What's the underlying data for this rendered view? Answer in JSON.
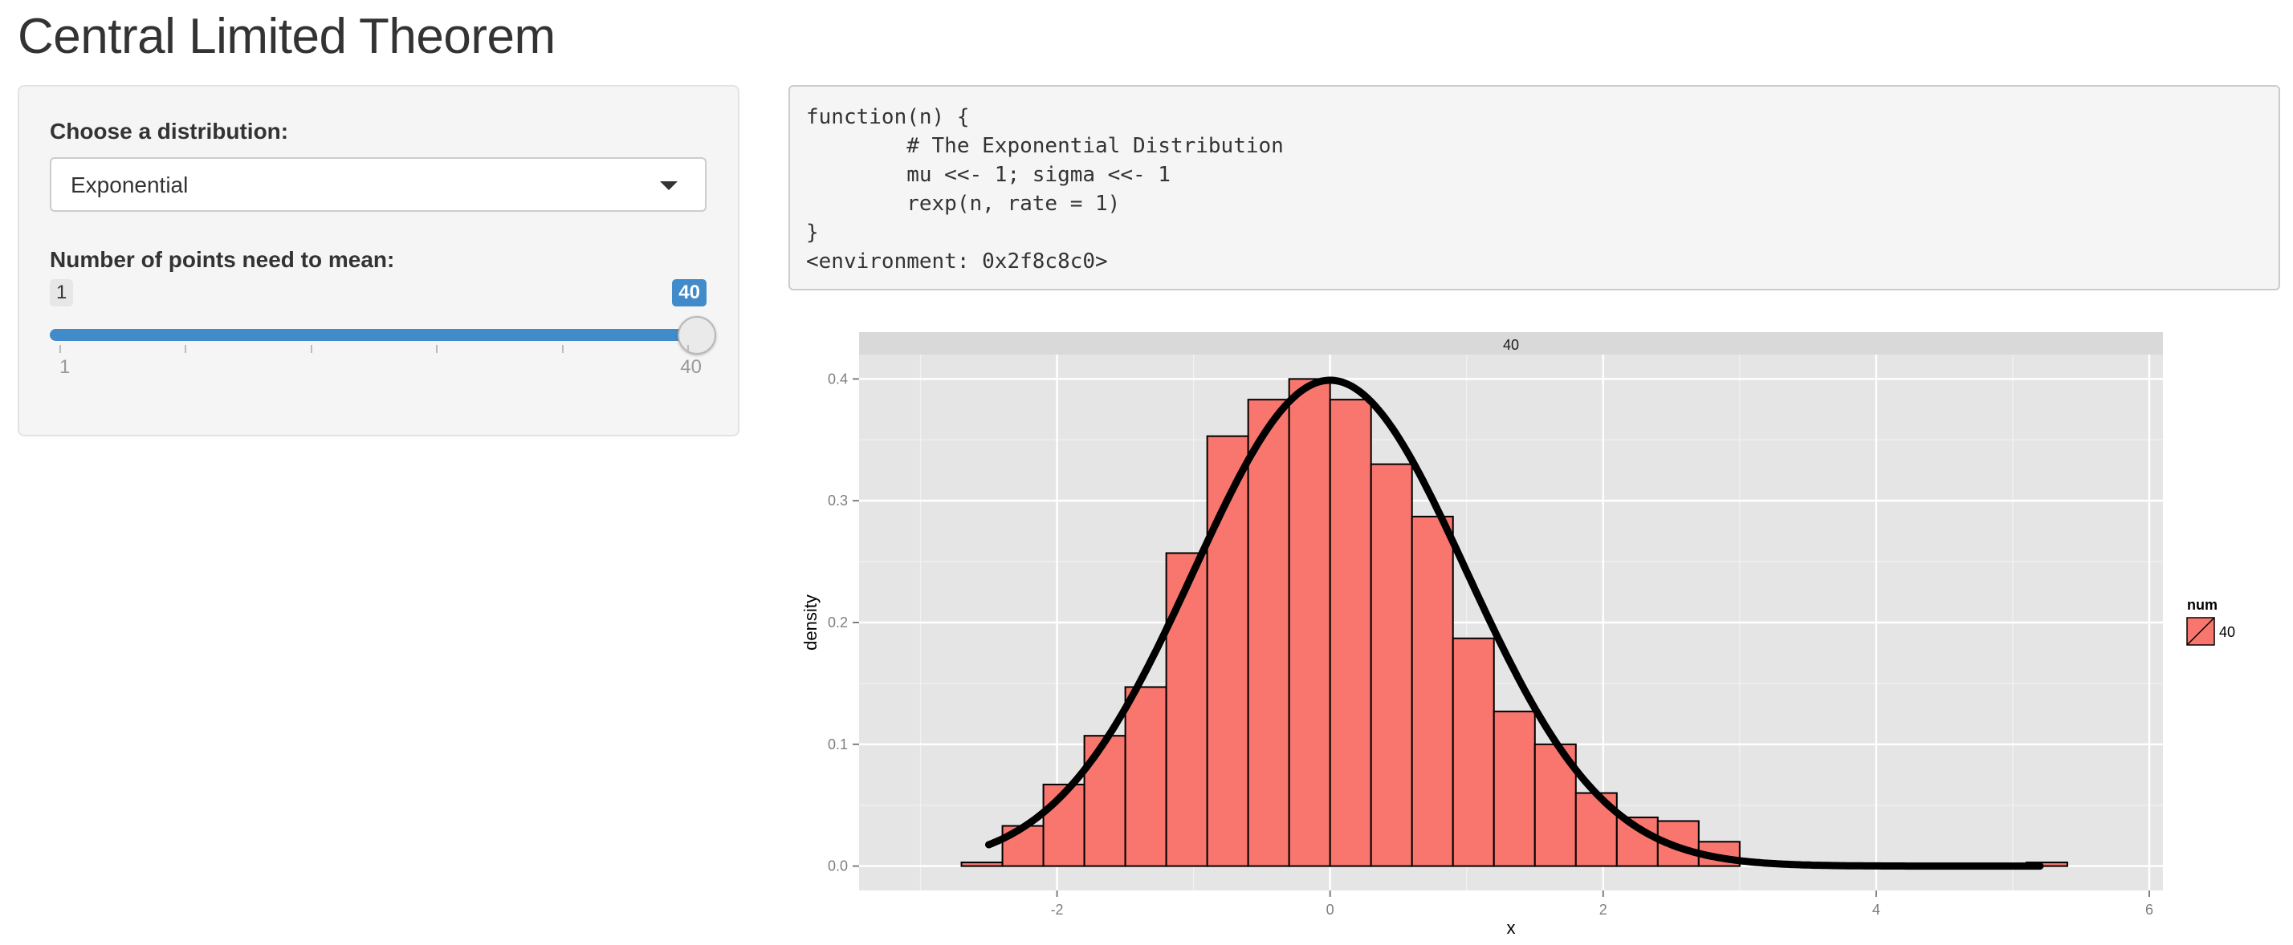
{
  "app": {
    "title": "Central Limited Theorem"
  },
  "sidebar": {
    "distribution_label": "Choose a distribution:",
    "distribution_value": "Exponential",
    "points_label": "Number of points need to mean:",
    "slider": {
      "min": 1,
      "max": 40,
      "value": 40,
      "min_label": "1",
      "max_label": "40",
      "value_label": "40",
      "tick_count": 6
    }
  },
  "code_output": {
    "lines": [
      "function(n) {",
      "        # The Exponential Distribution",
      "        mu <<- 1; sigma <<- 1",
      "        rexp(n, rate = 1)",
      "}",
      "<environment: 0x2f8c8c0>"
    ]
  },
  "colors": {
    "bar_fill": "#f8766d",
    "panel_bg": "#e5e5e5",
    "strip_bg": "#d9d9d9",
    "slider_blue": "#428bca",
    "curve": "#000000"
  },
  "chart_data": {
    "type": "bar",
    "facet_label": "40",
    "xlabel": "x",
    "ylabel": "density",
    "xlim": [
      -3.45,
      6.1
    ],
    "ylim": [
      -0.02,
      0.42
    ],
    "x_ticks": [
      -2,
      0,
      2,
      4,
      6
    ],
    "x_tick_labels": [
      "-2",
      "0",
      "2",
      "4",
      "6"
    ],
    "y_ticks": [
      0.0,
      0.1,
      0.2,
      0.3,
      0.4
    ],
    "y_tick_labels": [
      "0.0",
      "0.1",
      "0.2",
      "0.3",
      "0.4"
    ],
    "bin_width": 0.3,
    "bins": [
      {
        "x0": -3.0,
        "x1": -2.7,
        "value": 0.0
      },
      {
        "x0": -2.7,
        "x1": -2.4,
        "value": 0.003
      },
      {
        "x0": -2.4,
        "x1": -2.1,
        "value": 0.033
      },
      {
        "x0": -2.1,
        "x1": -1.8,
        "value": 0.067
      },
      {
        "x0": -1.8,
        "x1": -1.5,
        "value": 0.107
      },
      {
        "x0": -1.5,
        "x1": -1.2,
        "value": 0.147
      },
      {
        "x0": -1.2,
        "x1": -0.9,
        "value": 0.257
      },
      {
        "x0": -0.9,
        "x1": -0.6,
        "value": 0.353
      },
      {
        "x0": -0.6,
        "x1": -0.3,
        "value": 0.383
      },
      {
        "x0": -0.3,
        "x1": 0.0,
        "value": 0.4
      },
      {
        "x0": 0.0,
        "x1": 0.3,
        "value": 0.383
      },
      {
        "x0": 0.3,
        "x1": 0.6,
        "value": 0.33
      },
      {
        "x0": 0.6,
        "x1": 0.9,
        "value": 0.287
      },
      {
        "x0": 0.9,
        "x1": 1.2,
        "value": 0.187
      },
      {
        "x0": 1.2,
        "x1": 1.5,
        "value": 0.127
      },
      {
        "x0": 1.5,
        "x1": 1.8,
        "value": 0.1
      },
      {
        "x0": 1.8,
        "x1": 2.1,
        "value": 0.06
      },
      {
        "x0": 2.1,
        "x1": 2.4,
        "value": 0.04
      },
      {
        "x0": 2.4,
        "x1": 2.7,
        "value": 0.037
      },
      {
        "x0": 2.7,
        "x1": 3.0,
        "value": 0.02
      },
      {
        "x0": 3.0,
        "x1": 3.3,
        "value": 0.0
      },
      {
        "x0": 3.3,
        "x1": 3.6,
        "value": 0.0
      },
      {
        "x0": 3.6,
        "x1": 3.9,
        "value": 0.0
      },
      {
        "x0": 3.9,
        "x1": 4.2,
        "value": 0.0
      },
      {
        "x0": 4.2,
        "x1": 4.5,
        "value": 0.0
      },
      {
        "x0": 4.5,
        "x1": 4.8,
        "value": 0.0
      },
      {
        "x0": 4.8,
        "x1": 5.1,
        "value": 0.0
      },
      {
        "x0": 5.1,
        "x1": 5.4,
        "value": 0.003
      },
      {
        "x0": 5.4,
        "x1": 5.7,
        "value": 0.0
      }
    ],
    "curve": {
      "name": "normal density",
      "mean": 0,
      "sd": 1,
      "x_from": -2.5,
      "x_to": 5.2
    },
    "legend": {
      "title": "num",
      "entries": [
        "40"
      ],
      "position": "right"
    }
  }
}
